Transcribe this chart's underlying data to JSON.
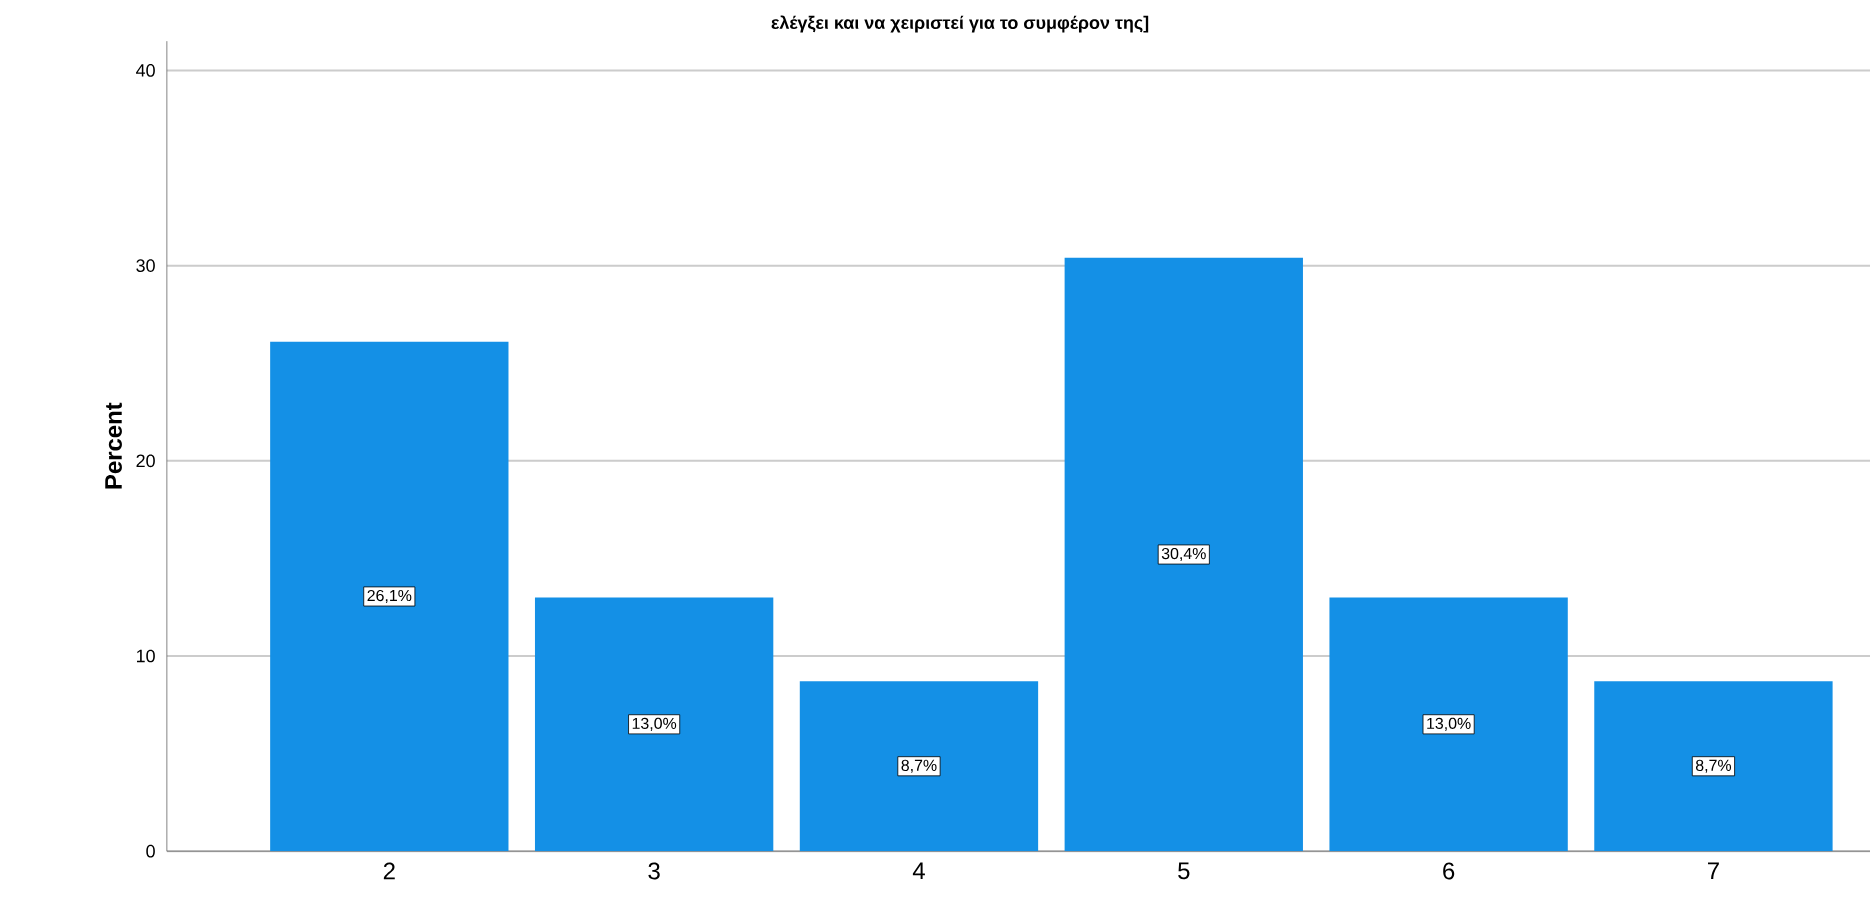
{
  "chart_data": {
    "type": "bar",
    "title": "ελέγξει και να χειριστεί για το συμφέρον της]",
    "ylabel": "Percent",
    "categories": [
      "2",
      "3",
      "4",
      "5",
      "6",
      "7"
    ],
    "values": [
      26.1,
      13.0,
      8.7,
      30.4,
      13.0,
      8.7
    ],
    "value_labels": [
      "26,1%",
      "13,0%",
      "8,7%",
      "30,4%",
      "13,0%",
      "8,7%"
    ],
    "color": "#1490e6",
    "ylim": [
      0,
      41.5
    ],
    "yticks": [
      0,
      10,
      20,
      30,
      40
    ],
    "grid": "y"
  }
}
